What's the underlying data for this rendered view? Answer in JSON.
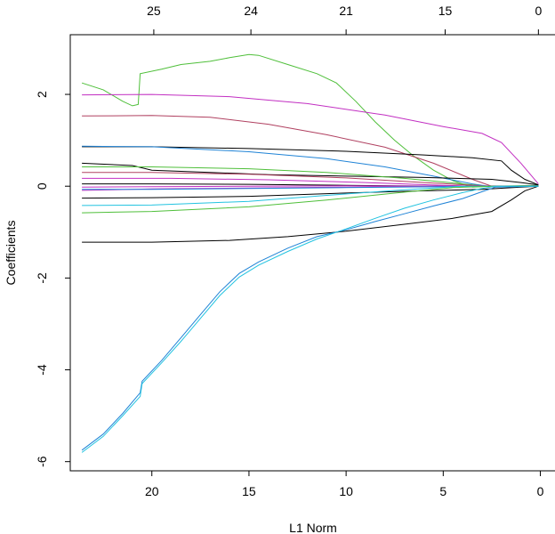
{
  "chart_data": {
    "type": "line",
    "title": "",
    "xlabel": "L1 Norm",
    "ylabel": "Coefficients",
    "xlim": [
      24.2,
      -0.8
    ],
    "ylim": [
      -6.2,
      3.3
    ],
    "x_reversed": true,
    "bottom_ticks": [
      20,
      15,
      10,
      5,
      0
    ],
    "bottom_tick_labels": [
      "20",
      "15",
      "10",
      "5",
      "0"
    ],
    "left_ticks": [
      -6,
      -4,
      -2,
      0,
      2
    ],
    "left_tick_labels": [
      "-6",
      "-4",
      "-2",
      "0",
      "2"
    ],
    "top_ticks": [
      {
        "x": 19.9,
        "label": "25"
      },
      {
        "x": 14.9,
        "label": "24"
      },
      {
        "x": 10.0,
        "label": "21"
      },
      {
        "x": 4.9,
        "label": "15"
      },
      {
        "x": 0.1,
        "label": "0"
      }
    ],
    "grid": false,
    "legend": "none",
    "series": [
      {
        "color": "#4fbf3a",
        "points": [
          [
            23.6,
            2.25
          ],
          [
            22.5,
            2.1
          ],
          [
            21.5,
            1.85
          ],
          [
            21.0,
            1.75
          ],
          [
            20.7,
            1.78
          ],
          [
            20.6,
            2.45
          ],
          [
            19.5,
            2.55
          ],
          [
            18.5,
            2.65
          ],
          [
            17.0,
            2.72
          ],
          [
            16.0,
            2.8
          ],
          [
            15.0,
            2.87
          ],
          [
            14.5,
            2.85
          ],
          [
            13.0,
            2.65
          ],
          [
            11.5,
            2.45
          ],
          [
            10.5,
            2.25
          ],
          [
            9.5,
            1.85
          ],
          [
            8.5,
            1.4
          ],
          [
            7.5,
            1.0
          ],
          [
            6.5,
            0.65
          ],
          [
            5.5,
            0.35
          ],
          [
            4.5,
            0.12
          ],
          [
            3.5,
            -0.02
          ],
          [
            2.5,
            0.0
          ],
          [
            0.1,
            0.02
          ]
        ]
      },
      {
        "color": "#c22fc2",
        "points": [
          [
            23.6,
            1.99
          ],
          [
            20.0,
            2.0
          ],
          [
            16.0,
            1.95
          ],
          [
            12.0,
            1.8
          ],
          [
            8.0,
            1.55
          ],
          [
            5.0,
            1.3
          ],
          [
            3.0,
            1.15
          ],
          [
            2.0,
            0.95
          ],
          [
            1.0,
            0.5
          ],
          [
            0.1,
            0.05
          ]
        ]
      },
      {
        "color": "#b04060",
        "points": [
          [
            23.6,
            1.53
          ],
          [
            20.0,
            1.54
          ],
          [
            17.0,
            1.5
          ],
          [
            14.0,
            1.35
          ],
          [
            11.0,
            1.12
          ],
          [
            8.0,
            0.85
          ],
          [
            5.5,
            0.5
          ],
          [
            3.5,
            0.15
          ],
          [
            2.5,
            0.0
          ],
          [
            0.1,
            0.01
          ]
        ]
      },
      {
        "color": "#000000",
        "points": [
          [
            23.6,
            0.86
          ],
          [
            20.0,
            0.86
          ],
          [
            15.0,
            0.82
          ],
          [
            10.0,
            0.76
          ],
          [
            6.0,
            0.68
          ],
          [
            3.5,
            0.62
          ],
          [
            2.0,
            0.55
          ],
          [
            1.5,
            0.35
          ],
          [
            0.8,
            0.15
          ],
          [
            0.1,
            0.03
          ]
        ]
      },
      {
        "color": "#1f83d6",
        "points": [
          [
            23.6,
            0.87
          ],
          [
            20.0,
            0.86
          ],
          [
            15.0,
            0.75
          ],
          [
            11.0,
            0.6
          ],
          [
            8.0,
            0.42
          ],
          [
            5.5,
            0.22
          ],
          [
            3.5,
            0.05
          ],
          [
            2.5,
            -0.01
          ],
          [
            0.1,
            0.01
          ]
        ]
      },
      {
        "color": "#000000",
        "points": [
          [
            23.6,
            0.5
          ],
          [
            21.0,
            0.45
          ],
          [
            20.0,
            0.35
          ],
          [
            17.0,
            0.3
          ],
          [
            14.0,
            0.25
          ],
          [
            10.0,
            0.22
          ],
          [
            6.0,
            0.19
          ],
          [
            2.5,
            0.15
          ],
          [
            1.0,
            0.08
          ],
          [
            0.1,
            0.03
          ]
        ]
      },
      {
        "color": "#4fbf3a",
        "points": [
          [
            23.6,
            0.42
          ],
          [
            20.0,
            0.42
          ],
          [
            15.0,
            0.38
          ],
          [
            11.0,
            0.3
          ],
          [
            7.0,
            0.17
          ],
          [
            4.0,
            0.05
          ],
          [
            2.5,
            -0.01
          ],
          [
            0.1,
            0.01
          ]
        ]
      },
      {
        "color": "#b04060",
        "points": [
          [
            23.6,
            0.3
          ],
          [
            20.0,
            0.3
          ],
          [
            15.0,
            0.26
          ],
          [
            10.0,
            0.18
          ],
          [
            6.0,
            0.08
          ],
          [
            3.0,
            0.01
          ],
          [
            0.1,
            0.0
          ]
        ]
      },
      {
        "color": "#c22fc2",
        "points": [
          [
            23.6,
            0.17
          ],
          [
            19.0,
            0.17
          ],
          [
            14.0,
            0.14
          ],
          [
            9.0,
            0.08
          ],
          [
            5.0,
            0.02
          ],
          [
            2.5,
            -0.01
          ],
          [
            0.1,
            0.0
          ]
        ]
      },
      {
        "color": "#000000",
        "points": [
          [
            23.6,
            0.05
          ],
          [
            20.0,
            0.05
          ],
          [
            15.0,
            0.04
          ],
          [
            10.0,
            0.02
          ],
          [
            5.0,
            0.0
          ],
          [
            0.1,
            0.0
          ]
        ]
      },
      {
        "color": "#c22fc2",
        "points": [
          [
            23.6,
            -0.02
          ],
          [
            20.0,
            -0.01
          ],
          [
            15.0,
            0.0
          ],
          [
            10.0,
            0.01
          ],
          [
            5.0,
            0.0
          ],
          [
            0.1,
            0.0
          ]
        ]
      },
      {
        "color": "#c22fc2",
        "points": [
          [
            23.6,
            -0.09
          ],
          [
            22.0,
            -0.08
          ],
          [
            20.0,
            -0.06
          ],
          [
            15.0,
            -0.04
          ],
          [
            10.0,
            -0.02
          ],
          [
            5.0,
            0.0
          ],
          [
            0.1,
            0.0
          ]
        ]
      },
      {
        "color": "#1f83d6",
        "points": [
          [
            23.6,
            -0.07
          ],
          [
            20.0,
            -0.07
          ],
          [
            15.0,
            -0.05
          ],
          [
            10.0,
            -0.03
          ],
          [
            5.0,
            -0.01
          ],
          [
            0.1,
            0.0
          ]
        ]
      },
      {
        "color": "#000000",
        "points": [
          [
            23.6,
            -0.26
          ],
          [
            20.0,
            -0.25
          ],
          [
            15.0,
            -0.22
          ],
          [
            10.0,
            -0.15
          ],
          [
            6.0,
            -0.1
          ],
          [
            3.0,
            -0.07
          ],
          [
            1.0,
            -0.02
          ],
          [
            0.1,
            0.0
          ]
        ]
      },
      {
        "color": "#22c3e0",
        "points": [
          [
            23.6,
            -0.42
          ],
          [
            20.0,
            -0.41
          ],
          [
            15.0,
            -0.33
          ],
          [
            11.0,
            -0.2
          ],
          [
            7.0,
            -0.08
          ],
          [
            4.0,
            0.0
          ],
          [
            2.5,
            0.0
          ],
          [
            0.1,
            0.0
          ]
        ]
      },
      {
        "color": "#4fbf3a",
        "points": [
          [
            23.6,
            -0.58
          ],
          [
            20.0,
            -0.55
          ],
          [
            15.0,
            -0.45
          ],
          [
            11.0,
            -0.3
          ],
          [
            7.0,
            -0.13
          ],
          [
            4.5,
            -0.03
          ],
          [
            2.5,
            0.0
          ],
          [
            0.1,
            0.0
          ]
        ]
      },
      {
        "color": "#000000",
        "points": [
          [
            23.6,
            -1.22
          ],
          [
            20.0,
            -1.22
          ],
          [
            16.0,
            -1.18
          ],
          [
            13.0,
            -1.1
          ],
          [
            10.0,
            -0.98
          ],
          [
            7.0,
            -0.83
          ],
          [
            4.5,
            -0.7
          ],
          [
            2.5,
            -0.55
          ],
          [
            1.5,
            -0.3
          ],
          [
            0.8,
            -0.1
          ],
          [
            0.1,
            0.0
          ]
        ]
      },
      {
        "color": "#1f83d6",
        "points": [
          [
            23.6,
            -5.75
          ],
          [
            22.5,
            -5.4
          ],
          [
            21.5,
            -4.95
          ],
          [
            20.6,
            -4.5
          ],
          [
            20.5,
            -4.25
          ],
          [
            19.5,
            -3.8
          ],
          [
            18.5,
            -3.3
          ],
          [
            17.5,
            -2.8
          ],
          [
            16.5,
            -2.3
          ],
          [
            15.5,
            -1.9
          ],
          [
            14.5,
            -1.65
          ],
          [
            13.0,
            -1.35
          ],
          [
            11.5,
            -1.1
          ],
          [
            10.0,
            -0.95
          ],
          [
            8.5,
            -0.77
          ],
          [
            7.0,
            -0.6
          ],
          [
            5.5,
            -0.43
          ],
          [
            4.0,
            -0.27
          ],
          [
            3.0,
            -0.12
          ],
          [
            2.3,
            -0.02
          ],
          [
            0.1,
            0.0
          ]
        ]
      },
      {
        "color": "#22c3e0",
        "points": [
          [
            23.6,
            -5.8
          ],
          [
            22.5,
            -5.45
          ],
          [
            21.5,
            -5.0
          ],
          [
            20.6,
            -4.58
          ],
          [
            20.5,
            -4.3
          ],
          [
            19.5,
            -3.85
          ],
          [
            18.5,
            -3.38
          ],
          [
            17.5,
            -2.88
          ],
          [
            16.5,
            -2.38
          ],
          [
            15.5,
            -1.98
          ],
          [
            14.5,
            -1.72
          ],
          [
            13.0,
            -1.42
          ],
          [
            11.5,
            -1.15
          ],
          [
            10.0,
            -0.93
          ],
          [
            8.5,
            -0.7
          ],
          [
            7.0,
            -0.48
          ],
          [
            5.5,
            -0.3
          ],
          [
            4.0,
            -0.14
          ],
          [
            3.0,
            -0.05
          ],
          [
            2.3,
            0.0
          ],
          [
            0.1,
            0.0
          ]
        ]
      }
    ]
  }
}
